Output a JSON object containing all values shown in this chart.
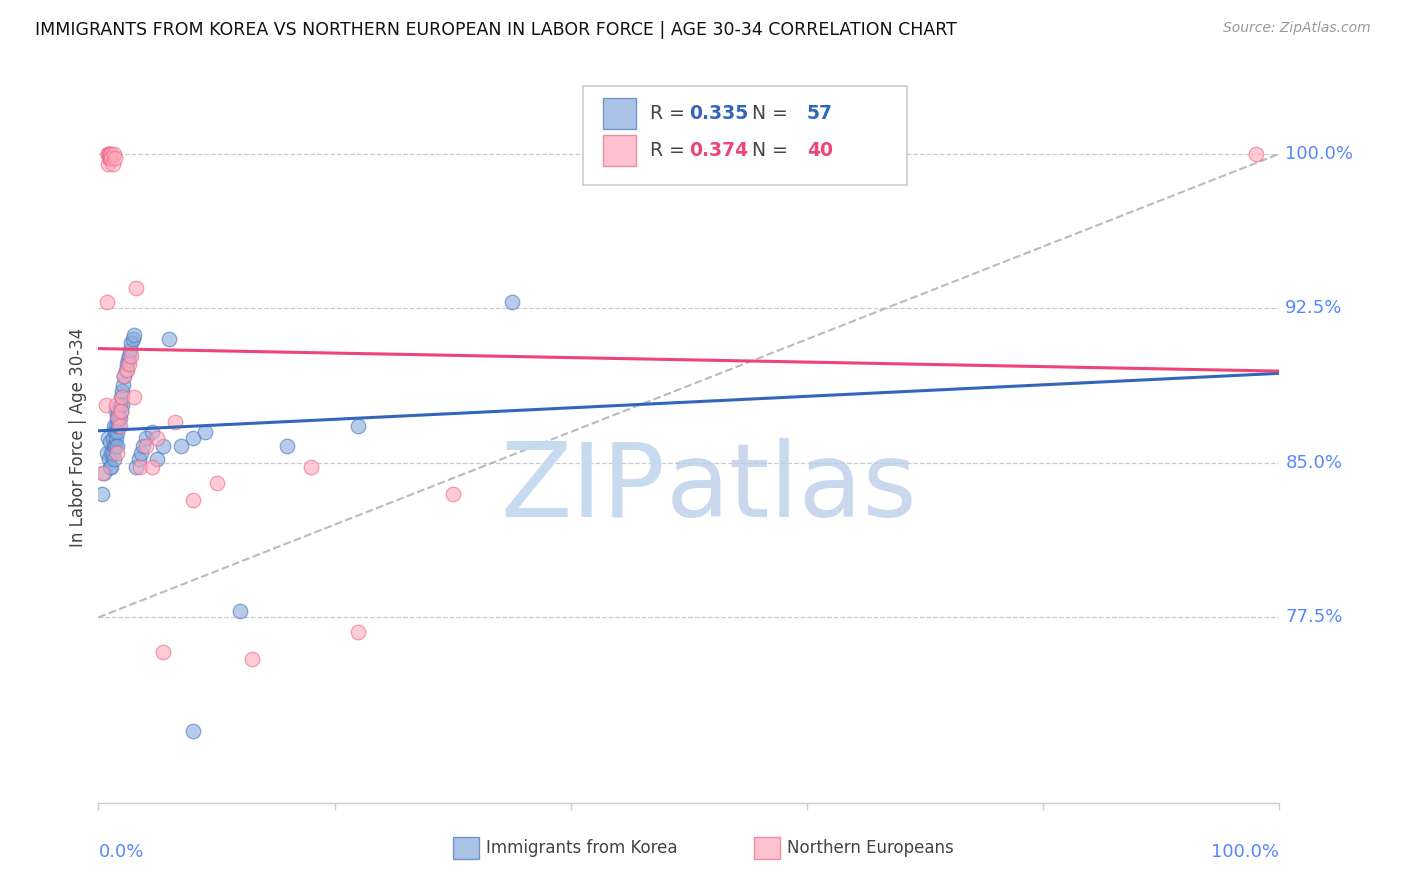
{
  "title": "IMMIGRANTS FROM KOREA VS NORTHERN EUROPEAN IN LABOR FORCE | AGE 30-34 CORRELATION CHART",
  "source": "Source: ZipAtlas.com",
  "ylabel": "In Labor Force | Age 30-34",
  "yticks": [
    0.775,
    0.85,
    0.925,
    1.0
  ],
  "ytick_labels": [
    "77.5%",
    "85.0%",
    "92.5%",
    "100.0%"
  ],
  "xlim": [
    0.0,
    1.0
  ],
  "ylim": [
    0.685,
    1.04
  ],
  "korea_R": 0.335,
  "korea_N": 57,
  "northern_R": 0.374,
  "northern_N": 40,
  "korea_color": "#88AADD",
  "northern_color": "#FFAABB",
  "korea_edge_color": "#4477BB",
  "northern_edge_color": "#EE6688",
  "korea_line_color": "#3366BB",
  "northern_line_color": "#EE4477",
  "korea_x": [
    0.003,
    0.005,
    0.007,
    0.008,
    0.009,
    0.01,
    0.01,
    0.011,
    0.011,
    0.012,
    0.012,
    0.013,
    0.013,
    0.013,
    0.014,
    0.014,
    0.015,
    0.015,
    0.015,
    0.016,
    0.016,
    0.016,
    0.017,
    0.017,
    0.018,
    0.018,
    0.019,
    0.019,
    0.02,
    0.02,
    0.021,
    0.022,
    0.023,
    0.024,
    0.025,
    0.026,
    0.027,
    0.028,
    0.029,
    0.03,
    0.032,
    0.034,
    0.036,
    0.038,
    0.04,
    0.045,
    0.05,
    0.055,
    0.06,
    0.07,
    0.08,
    0.09,
    0.12,
    0.16,
    0.22,
    0.35,
    0.08
  ],
  "korea_y": [
    0.835,
    0.845,
    0.855,
    0.862,
    0.852,
    0.86,
    0.848,
    0.855,
    0.848,
    0.862,
    0.855,
    0.868,
    0.858,
    0.852,
    0.865,
    0.858,
    0.875,
    0.868,
    0.862,
    0.872,
    0.865,
    0.858,
    0.875,
    0.868,
    0.878,
    0.872,
    0.882,
    0.875,
    0.885,
    0.878,
    0.888,
    0.892,
    0.895,
    0.898,
    0.9,
    0.902,
    0.905,
    0.908,
    0.91,
    0.912,
    0.848,
    0.852,
    0.855,
    0.858,
    0.862,
    0.865,
    0.852,
    0.858,
    0.91,
    0.858,
    0.862,
    0.865,
    0.778,
    0.858,
    0.868,
    0.928,
    0.72
  ],
  "northern_x": [
    0.003,
    0.006,
    0.007,
    0.008,
    0.008,
    0.008,
    0.009,
    0.009,
    0.01,
    0.01,
    0.011,
    0.011,
    0.012,
    0.013,
    0.014,
    0.015,
    0.016,
    0.017,
    0.018,
    0.019,
    0.02,
    0.022,
    0.024,
    0.026,
    0.028,
    0.03,
    0.032,
    0.035,
    0.04,
    0.045,
    0.05,
    0.055,
    0.065,
    0.08,
    0.1,
    0.13,
    0.18,
    0.22,
    0.3,
    0.98
  ],
  "northern_y": [
    0.845,
    0.878,
    0.928,
    1.0,
    1.0,
    0.995,
    1.0,
    0.998,
    1.0,
    0.998,
    1.0,
    0.998,
    0.995,
    1.0,
    0.998,
    0.878,
    0.855,
    0.872,
    0.868,
    0.875,
    0.882,
    0.892,
    0.895,
    0.898,
    0.902,
    0.882,
    0.935,
    0.848,
    0.858,
    0.848,
    0.862,
    0.758,
    0.87,
    0.832,
    0.84,
    0.755,
    0.848,
    0.768,
    0.835,
    1.0
  ]
}
